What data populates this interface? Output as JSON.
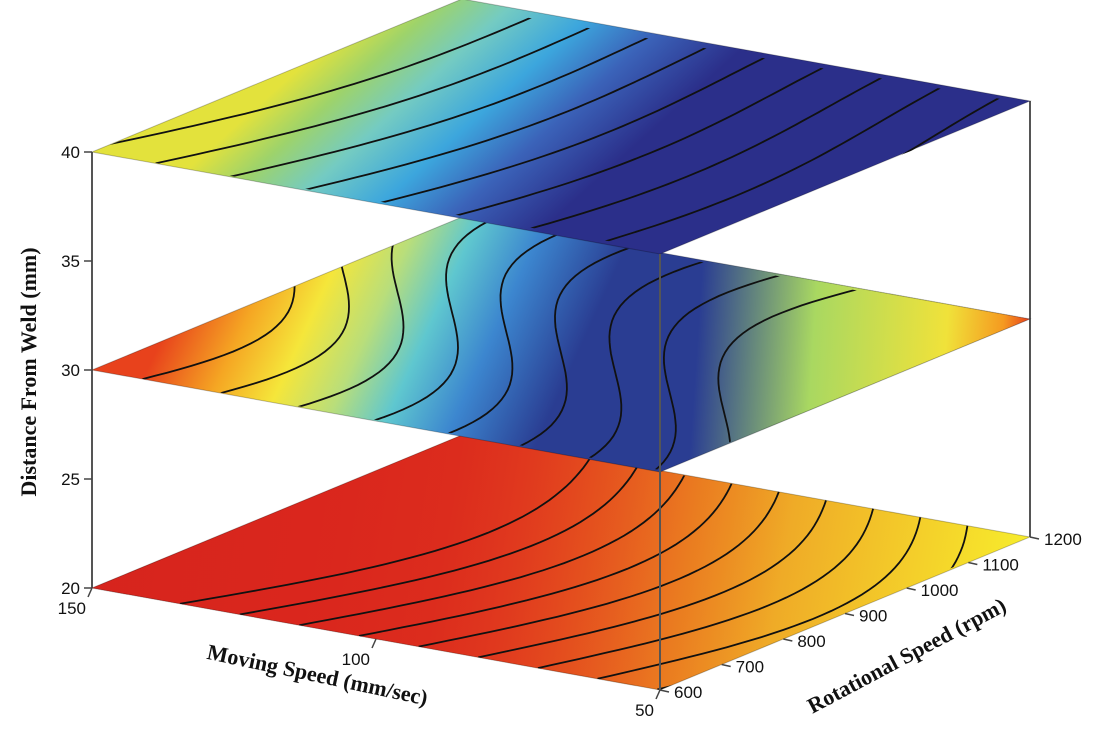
{
  "chart_data": {
    "type": "contour-slices-3d",
    "title": "",
    "axes": {
      "x": {
        "label": "Moving Speed (mm/sec)",
        "range": [
          50,
          150
        ],
        "ticks": [
          "50",
          "100",
          "150"
        ]
      },
      "y": {
        "label": "Rotational Speed (rpm)",
        "range": [
          600,
          1200
        ],
        "ticks": [
          "600",
          "700",
          "800",
          "900",
          "1000",
          "1100",
          "1200"
        ]
      },
      "z": {
        "label": "Distance From Weld (mm)",
        "range": [
          20,
          40
        ],
        "ticks": [
          "20",
          "25",
          "30",
          "35",
          "40"
        ]
      }
    },
    "slices": [
      {
        "z": 20,
        "colormap": "warm",
        "description_values": "bottom slice mostly red/orange, yellow near low rotational speed and low moving speed"
      },
      {
        "z": 30,
        "colormap": "mixed",
        "description_values": "middle slice orange/yellow at high moving speed, blue at low moving speed, green-yellow-red toward high rotational speed"
      },
      {
        "z": 40,
        "colormap": "cool",
        "description_values": "top slice mostly blue/cyan, green-yellow toward high moving speed and high rotational speed"
      }
    ],
    "contour_levels": 10,
    "grid": false,
    "legend": "none"
  }
}
